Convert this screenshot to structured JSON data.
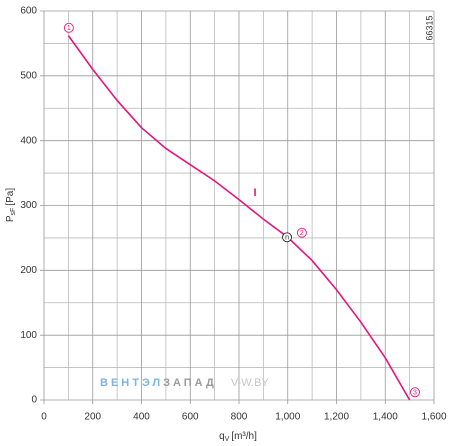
{
  "chart_data": {
    "type": "line",
    "id_label": "66315",
    "xlabel": {
      "main": "q",
      "sub": "V",
      "unit": "[m³/h]"
    },
    "ylabel": {
      "main": "P",
      "sub": "sF",
      "unit": "[Pa]"
    },
    "x": [
      100,
      200,
      300,
      400,
      500,
      600,
      700,
      800,
      900,
      1000,
      1100,
      1200,
      1300,
      1400,
      1500
    ],
    "series": [
      {
        "color": "#e2177e",
        "values": [
          562,
          510,
          462,
          420,
          388,
          363,
          338,
          309,
          279,
          251,
          215,
          170,
          120,
          65,
          0
        ]
      }
    ],
    "points": [
      {
        "label": "1",
        "x": 102,
        "y": 574
      },
      {
        "label": "n",
        "x": 997,
        "y": 251
      },
      {
        "label": "2",
        "x": 1058,
        "y": 258
      },
      {
        "label": "3",
        "x": 1522,
        "y": 12
      }
    ],
    "annotation": {
      "text": "I",
      "x": 866,
      "y": 319
    },
    "watermark": {
      "a": "ВЕНТЭЛ",
      "b": "ЗАПАД",
      "c": "V-W.BY"
    },
    "xlim": [
      0,
      1600
    ],
    "ylim": [
      0,
      600
    ],
    "xticks": [
      0,
      200,
      400,
      600,
      800,
      {
        "value": 1000,
        "label": "1,000"
      },
      {
        "value": 1200,
        "label": "1,200"
      },
      {
        "value": 1400,
        "label": "1,400"
      },
      {
        "value": 1600,
        "label": "1,600"
      }
    ],
    "yticks": [
      0,
      100,
      200,
      300,
      400,
      500,
      600
    ],
    "xgrid": [
      100,
      300,
      500,
      700,
      900,
      1100,
      1300,
      1500
    ],
    "ygrid": [
      50,
      150,
      250,
      350,
      450,
      550
    ],
    "grid": true
  }
}
